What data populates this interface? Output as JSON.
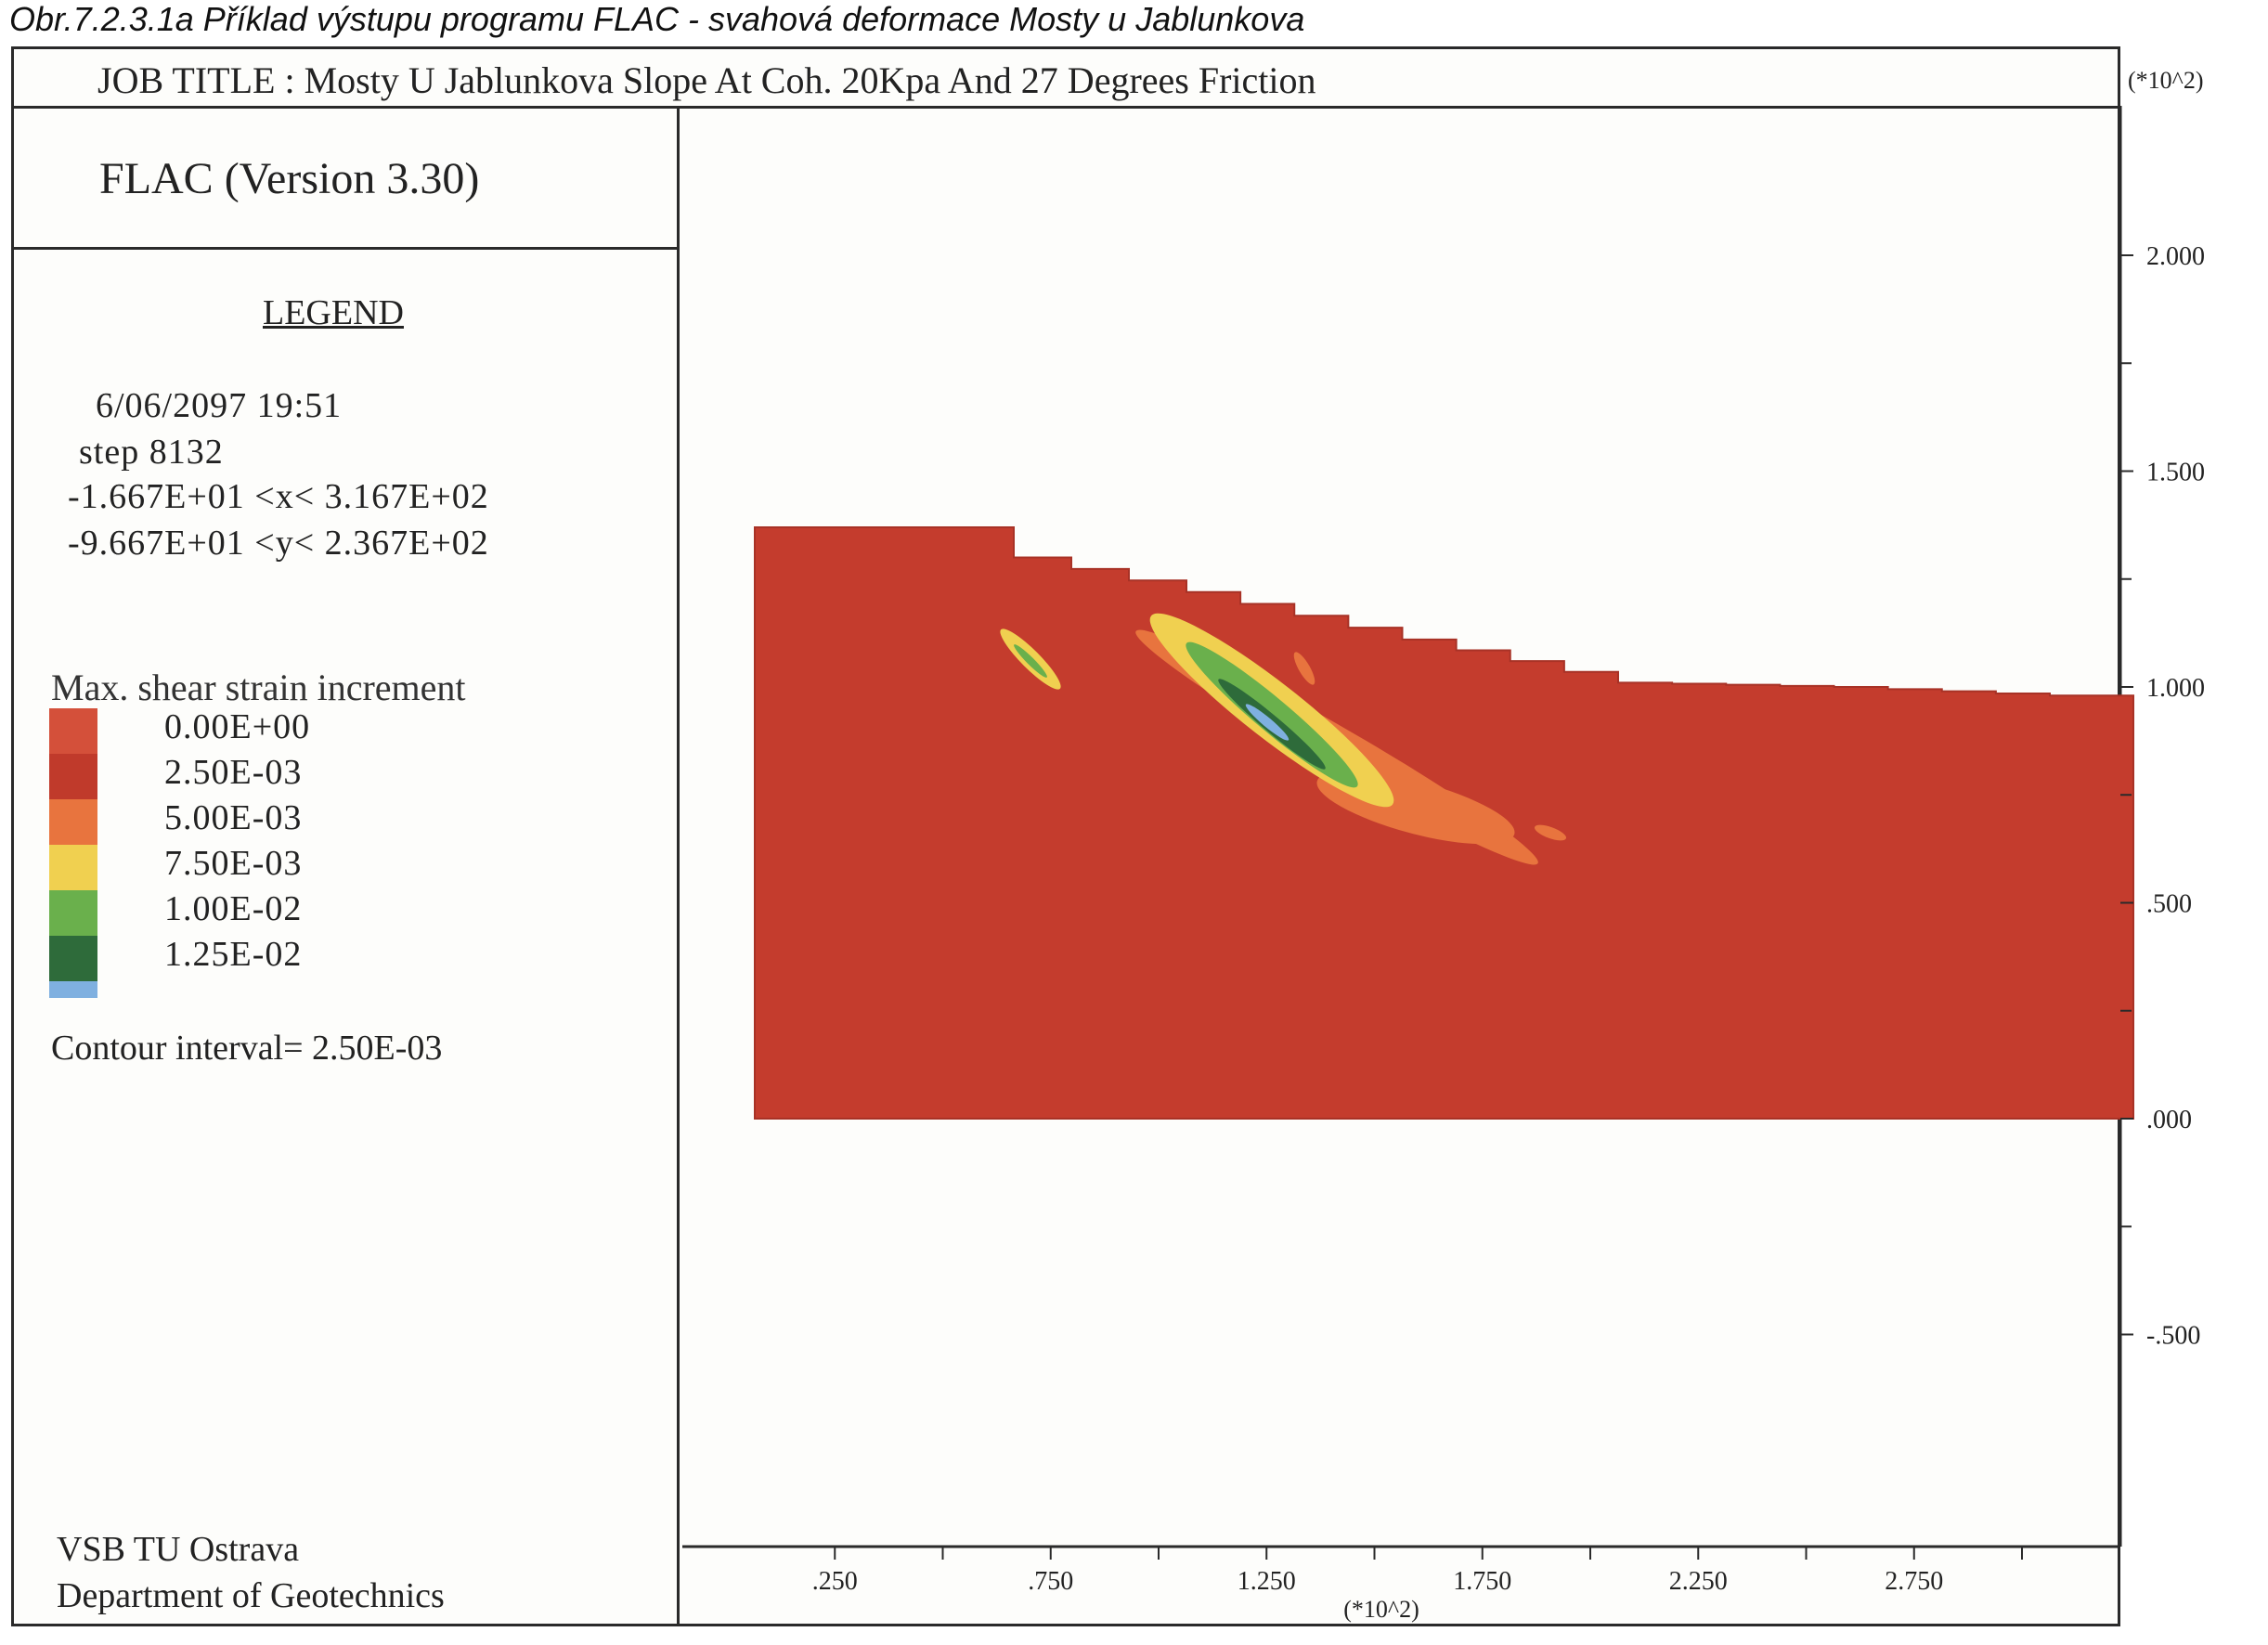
{
  "caption": "Obr.7.2.3.1a  Příklad výstupu programu FLAC - svahová deformace Mosty u Jablunkova",
  "header": {
    "job_title": "JOB TITLE :  Mosty U Jablunkova Slope At Coh. 20Kpa And 27 Degrees Friction",
    "exponent": "(*10^2)"
  },
  "legend": {
    "version": "FLAC (Version 3.30)",
    "title": "LEGEND",
    "datetime": "6/06/2097  19:51",
    "step": "step   8132",
    "x_range": "-1.667E+01 <x<  3.167E+02",
    "y_range": "-9.667E+01 <y<  2.367E+02",
    "variable": "Max. shear strain increment",
    "levels": [
      {
        "label": "0.00E+00",
        "color": "#d4503a"
      },
      {
        "label": "2.50E-03",
        "color": "#c03a2b"
      },
      {
        "label": "5.00E-03",
        "color": "#e8743e"
      },
      {
        "label": "7.50E-03",
        "color": "#f0d050"
      },
      {
        "label": "1.00E-02",
        "color": "#6ab04c"
      },
      {
        "label": "1.25E-02",
        "color": "#2e6b3a"
      }
    ],
    "extra_swatch_color": "#7fb0e0",
    "contour_interval": "Contour interval=  2.50E-03",
    "institution_line1": "VSB TU Ostrava",
    "institution_line2": "Department of Geotechnics"
  },
  "chart_data": {
    "type": "heatmap",
    "title": "Mosty U Jablunkova Slope At Coh. 20Kpa And 27 Degrees Friction",
    "x_axis": {
      "tick_labels": [
        ".250",
        ".750",
        "1.250",
        "1.750",
        "2.250",
        "2.750"
      ],
      "tick_values": [
        0.25,
        0.75,
        1.25,
        1.75,
        2.25,
        2.75
      ],
      "multiplier_label": "(*10^2)",
      "range": [
        -0.1667,
        3.167
      ]
    },
    "y_axis": {
      "tick_labels": [
        "-.500",
        ".000",
        ".500",
        "1.000",
        "1.500",
        "2.000"
      ],
      "tick_values": [
        -0.5,
        0.0,
        0.5,
        1.0,
        1.5,
        2.0
      ],
      "multiplier_label": "(*10^2)",
      "range": [
        -0.9667,
        2.367
      ]
    },
    "slope_profile": {
      "x": [
        0.0,
        0.5,
        0.6,
        1.0,
        1.5,
        2.0,
        2.5,
        3.0
      ],
      "y": [
        1.37,
        1.37,
        1.3,
        1.22,
        1.11,
        1.01,
        1.0,
        0.98
      ],
      "base_y": 0.0
    },
    "colors": {
      "background": "#c43c2d",
      "band_low": "#e8743e",
      "band_mid": "#f0d050",
      "band_high": "#6ab04c",
      "band_peak": "#2e6b3a",
      "core": "#7fb0e0"
    }
  }
}
